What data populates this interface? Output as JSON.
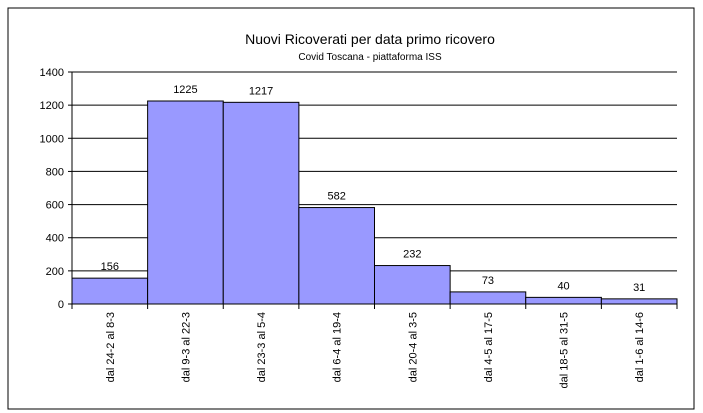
{
  "chart_data": {
    "type": "bar",
    "title": "Nuovi Ricoverati per data primo ricovero",
    "subtitle": "Covid Toscana - piattaforma ISS",
    "categories": [
      "dal 24-2 al 8-3",
      "dal 9-3 al 22-3",
      "dal 23-3 al 5-4",
      "dal 6-4 al 19-4",
      "dal 20-4 al 3-5",
      "dal 4-5 al 17-5",
      "dal 18-5 al 31-5",
      "dal 1-6 al 14-6"
    ],
    "values": [
      156,
      1225,
      1217,
      582,
      232,
      73,
      40,
      31
    ],
    "color": "#9999ff",
    "ylim": [
      0,
      1400
    ],
    "yticks": [
      0,
      200,
      400,
      600,
      800,
      1000,
      1200,
      1400
    ],
    "grid": true
  }
}
